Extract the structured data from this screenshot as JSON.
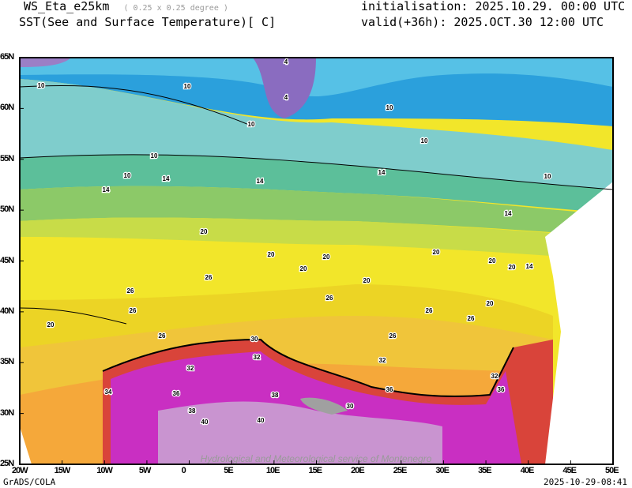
{
  "header": {
    "model": "WS_Eta_e25km",
    "resolution": "( 0.25 x 0.25 degree )",
    "field": "SST(See and Surface Temperature)[ C]",
    "initialisation": "initialisation: 2025.10.29. 00:00 UTC",
    "valid": "valid(+36h): 2025.OCT.30 12:00 UTC"
  },
  "axes": {
    "lon_labels": [
      "20W",
      "15W",
      "10W",
      "5W",
      "0",
      "5E",
      "10E",
      "15E",
      "20E",
      "25E",
      "30E",
      "35E",
      "40E",
      "45E",
      "50E"
    ],
    "lat_labels": [
      "65N",
      "60N",
      "55N",
      "50N",
      "45N",
      "40N",
      "35N",
      "30N",
      "25N"
    ]
  },
  "contour_labels": [
    "4",
    "4",
    "10",
    "10",
    "10",
    "10",
    "10",
    "10",
    "10",
    "10",
    "14",
    "14",
    "14",
    "14",
    "14",
    "14",
    "20",
    "20",
    "20",
    "20",
    "20",
    "20",
    "20",
    "20",
    "20",
    "20",
    "26",
    "26",
    "26",
    "26",
    "26",
    "26",
    "26",
    "26",
    "32",
    "32",
    "32",
    "32",
    "34",
    "36",
    "36",
    "36",
    "38",
    "38",
    "40",
    "40",
    "30",
    "30"
  ],
  "watermark": "Hydrological and Meteorological service of Montenegro",
  "footer": {
    "left": "GrADS/COLA",
    "right": "2025-10-29-08:41"
  },
  "colors": {
    "purple": "#9b7fc6",
    "blue": "#2ba0dc",
    "cyan": "#56c1e6",
    "teal": "#7fcdcc",
    "green": "#5cbf9a",
    "lightgreen": "#8cc968",
    "yellowgreen": "#c8dc48",
    "yellow": "#f2e62a",
    "gold": "#f0c53a",
    "orange": "#f5a83a",
    "red": "#d9443a",
    "magenta": "#c92fc2",
    "lilac": "#c994d0"
  }
}
